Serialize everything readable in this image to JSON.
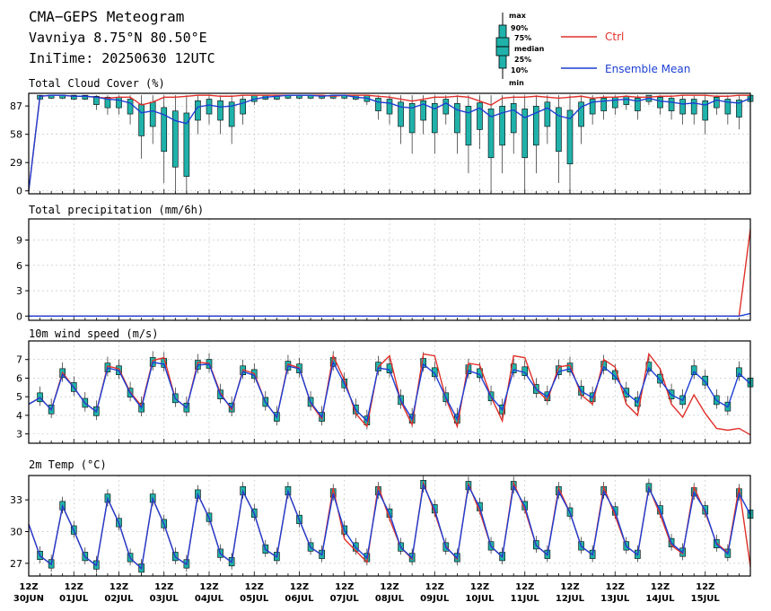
{
  "header": {
    "title": "CMA−GEPS Meteogram",
    "location": "Vavniya 8.75°N 80.50°E",
    "init_time": "IniTime: 20250630 12UTC"
  },
  "legend": {
    "box_labels": [
      "max",
      "90%",
      "75%",
      "median",
      "25%",
      "10%",
      "min"
    ],
    "ctrl_label": "Ctrl",
    "mean_label": "Ensemble Mean",
    "ctrl_color": "#e0302a",
    "mean_color": "#1c3fd4",
    "box_color": "#20b2aa"
  },
  "chart_data": [
    {
      "type": "box-line",
      "title": "Total Cloud Cover (%)",
      "ylim": [
        -3,
        100
      ],
      "yticks": [
        0,
        29,
        58,
        87
      ],
      "ctrl": [
        0,
        97,
        98,
        98,
        97,
        97,
        96,
        95,
        96,
        96,
        88,
        91,
        96,
        96,
        97,
        98,
        98,
        97,
        97,
        98,
        98,
        98,
        98,
        98,
        98,
        98,
        98,
        97,
        98,
        98,
        98,
        97,
        96,
        94,
        92,
        94,
        96,
        96,
        97,
        96,
        92,
        88,
        95,
        96,
        96,
        97,
        96,
        95,
        96,
        97,
        95,
        96,
        96,
        97,
        96,
        96,
        97,
        97,
        98,
        98,
        98,
        97,
        97,
        98,
        98
      ],
      "mean": [
        0,
        97,
        98,
        98,
        97,
        97,
        96,
        94,
        93,
        90,
        80,
        82,
        78,
        72,
        69,
        86,
        88,
        86,
        87,
        90,
        94,
        96,
        97,
        98,
        98,
        98,
        97,
        98,
        98,
        96,
        95,
        91,
        90,
        86,
        85,
        89,
        84,
        90,
        83,
        80,
        85,
        76,
        80,
        83,
        75,
        80,
        85,
        77,
        74,
        86,
        91,
        92,
        93,
        94,
        92,
        95,
        92,
        91,
        89,
        90,
        88,
        93,
        91,
        90,
        95
      ],
      "box_median": [
        null,
        97,
        98,
        98,
        97,
        97,
        95,
        94,
        94,
        92,
        85,
        88,
        80,
        75,
        72,
        90,
        92,
        90,
        88,
        92,
        96,
        97,
        97,
        98,
        98,
        98,
        98,
        98,
        98,
        97,
        96,
        93,
        92,
        88,
        86,
        90,
        86,
        92,
        86,
        82,
        87,
        78,
        82,
        86,
        78,
        82,
        88,
        80,
        76,
        88,
        92,
        93,
        94,
        95,
        93,
        96,
        94,
        93,
        92,
        92,
        90,
        94,
        92,
        91,
        96
      ]
    },
    {
      "type": "line",
      "title": "Total precipitation (mm/6h)",
      "ylim": [
        -0.5,
        11.5
      ],
      "yticks": [
        0,
        3,
        6,
        9
      ],
      "ctrl_end": [
        0,
        0,
        10.3
      ],
      "mean_end": [
        0,
        0,
        0.3
      ]
    },
    {
      "type": "box-line",
      "title": "10m wind speed (m/s)",
      "ylim": [
        2.5,
        8
      ],
      "yticks": [
        3,
        4,
        5,
        6,
        7
      ],
      "ctrl": [
        4.6,
        4.95,
        4.3,
        6.3,
        5.5,
        4.65,
        4.2,
        6.65,
        6.5,
        5.25,
        4.5,
        6.95,
        7.1,
        4.9,
        4.4,
        6.85,
        6.8,
        5.2,
        4.3,
        6.45,
        6.25,
        4.7,
        3.9,
        6.75,
        6.55,
        4.65,
        3.8,
        7.2,
        5.9,
        4.1,
        3.4,
        6.6,
        7.2,
        4.75,
        3.5,
        7.3,
        7.2,
        4.9,
        3.4,
        6.8,
        6.7,
        5.0,
        3.7,
        7.2,
        7.1,
        5.4,
        4.8,
        6.6,
        6.7,
        5.1,
        4.6,
        7.0,
        6.6,
        4.6,
        4.0,
        7.3,
        6.5,
        4.6,
        3.9,
        5.1,
        4.1,
        3.3,
        3.2,
        3.3,
        2.95
      ],
      "mean": [
        4.6,
        4.95,
        4.3,
        6.2,
        5.5,
        4.65,
        4.2,
        6.55,
        6.4,
        5.2,
        4.4,
        6.85,
        6.75,
        4.9,
        4.4,
        6.7,
        6.75,
        5.1,
        4.4,
        6.35,
        6.15,
        4.7,
        3.9,
        6.65,
        6.5,
        4.7,
        3.9,
        6.85,
        5.7,
        4.3,
        3.7,
        6.55,
        6.45,
        4.8,
        3.8,
        6.75,
        6.25,
        4.95,
        3.8,
        6.4,
        6.2,
        5.0,
        4.3,
        6.45,
        6.3,
        5.4,
        5.0,
        6.35,
        6.5,
        5.3,
        4.95,
        6.6,
        6.1,
        5.2,
        4.7,
        6.55,
        5.9,
        5.1,
        4.8,
        6.35,
        5.8,
        4.8,
        4.45,
        6.25,
        5.7
      ],
      "box_median": [
        null,
        4.95,
        4.3,
        6.25,
        5.5,
        4.65,
        4.2,
        6.55,
        6.4,
        5.2,
        4.4,
        6.85,
        6.8,
        4.9,
        4.4,
        6.7,
        6.75,
        5.1,
        4.4,
        6.4,
        6.2,
        4.7,
        3.9,
        6.65,
        6.5,
        4.7,
        3.9,
        6.85,
        5.7,
        4.3,
        3.7,
        6.6,
        6.5,
        4.8,
        3.8,
        6.8,
        6.3,
        4.95,
        3.8,
        6.45,
        6.25,
        5.0,
        4.3,
        6.5,
        6.35,
        5.4,
        5.0,
        6.4,
        6.55,
        5.3,
        4.95,
        6.65,
        6.15,
        5.2,
        4.7,
        6.6,
        5.95,
        5.1,
        4.8,
        6.4,
        5.85,
        4.8,
        4.45,
        6.3,
        5.75
      ]
    },
    {
      "type": "box-line",
      "title": "2m Temp (°C)",
      "ylim": [
        25.8,
        35.3
      ],
      "yticks": [
        27,
        30,
        33
      ],
      "ctrl": [
        30.7,
        27.7,
        26.9,
        32.4,
        30.1,
        27.6,
        26.8,
        33.1,
        30.8,
        27.5,
        26.5,
        33.1,
        30.7,
        27.6,
        26.9,
        33.5,
        31.3,
        27.9,
        27.1,
        33.8,
        31.7,
        28.3,
        27.6,
        33.8,
        31.1,
        28.5,
        27.8,
        34.1,
        29.3,
        28.2,
        27.1,
        34.3,
        31.2,
        28.5,
        27.4,
        34.6,
        31.8,
        28.6,
        27.4,
        34.5,
        31.9,
        28.6,
        27.6,
        34.6,
        32.1,
        28.7,
        27.8,
        34.1,
        31.8,
        28.6,
        27.8,
        34.2,
        31.5,
        28.6,
        27.8,
        34.2,
        31.6,
        28.7,
        27.9,
        34.2,
        31.8,
        28.9,
        28.0,
        34.2,
        26.7
      ],
      "mean": [
        30.7,
        27.7,
        26.9,
        32.4,
        30.1,
        27.6,
        26.8,
        33.1,
        30.8,
        27.5,
        26.5,
        33.1,
        30.7,
        27.6,
        26.9,
        33.5,
        31.3,
        27.9,
        27.1,
        33.8,
        31.7,
        28.3,
        27.6,
        33.8,
        31.1,
        28.5,
        27.8,
        33.6,
        30.1,
        28.5,
        27.5,
        33.8,
        31.7,
        28.5,
        27.5,
        34.4,
        32.1,
        28.5,
        27.5,
        34.3,
        32.3,
        28.6,
        27.6,
        34.3,
        32.4,
        28.7,
        27.8,
        33.8,
        31.8,
        28.6,
        27.8,
        33.8,
        31.9,
        28.6,
        27.8,
        34.1,
        32.0,
        28.9,
        28.0,
        33.7,
        32.0,
        28.8,
        27.9,
        33.6,
        31.6
      ],
      "box_median": [
        null,
        27.7,
        26.9,
        32.4,
        30.1,
        27.6,
        26.8,
        33.1,
        30.8,
        27.5,
        26.5,
        33.1,
        30.7,
        27.6,
        26.9,
        33.5,
        31.3,
        27.9,
        27.1,
        33.8,
        31.7,
        28.3,
        27.6,
        33.8,
        31.1,
        28.5,
        27.8,
        33.6,
        30.1,
        28.5,
        27.5,
        33.8,
        31.7,
        28.5,
        27.5,
        34.4,
        32.1,
        28.5,
        27.5,
        34.3,
        32.3,
        28.6,
        27.6,
        34.3,
        32.4,
        28.7,
        27.8,
        33.8,
        31.8,
        28.6,
        27.8,
        33.8,
        31.9,
        28.6,
        27.8,
        34.1,
        32.0,
        28.9,
        28.0,
        33.7,
        32.0,
        28.8,
        27.9,
        33.6,
        31.6
      ]
    }
  ],
  "x_axis": {
    "hour_label": "12Z",
    "dates": [
      "30JUN",
      "01JUL",
      "02JUL",
      "03JUL",
      "04JUL",
      "05JUL",
      "06JUL",
      "07JUL",
      "08JUL",
      "09JUL",
      "10JUL",
      "11JUL",
      "12JUL",
      "13JUL",
      "14JUL",
      "15JUL"
    ]
  }
}
